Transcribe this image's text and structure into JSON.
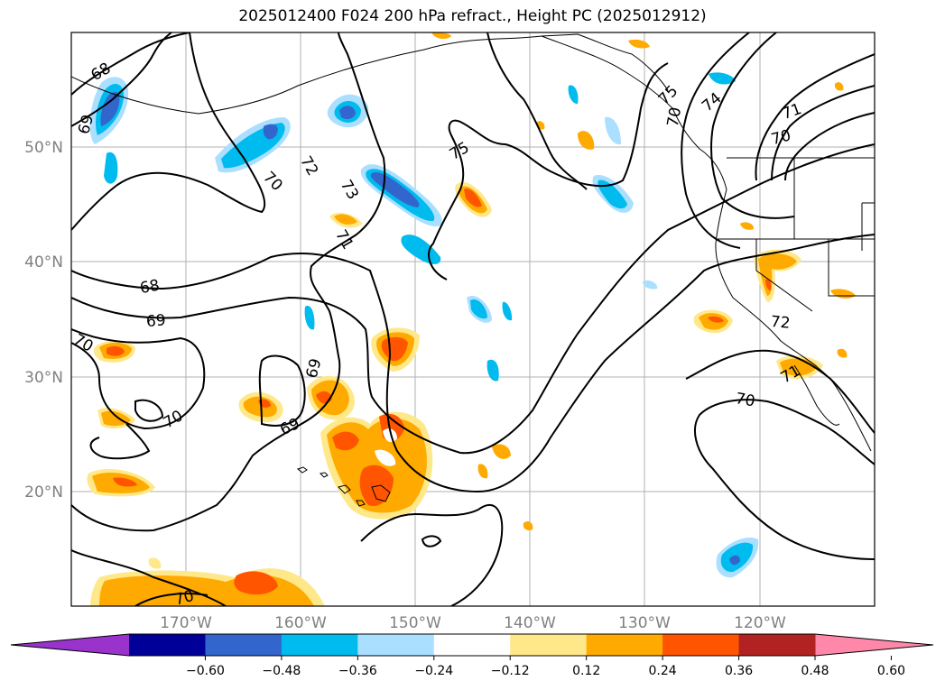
{
  "title": "2025012400 F024 200 hPa refract., Height PC (2025012912)",
  "lon_labels": [
    "170°W",
    "160°W",
    "150°W",
    "140°W",
    "130°W",
    "120°W"
  ],
  "lat_labels": [
    "50°N",
    "40°N",
    "30°N",
    "20°N"
  ],
  "colorbar": {
    "colors": [
      "#9933cc",
      "#000099",
      "#3366cc",
      "#00bbee",
      "#aadfff",
      "#ffffff",
      "#ffe88a",
      "#ffaa00",
      "#ff5500",
      "#b22222",
      "#ff88aa"
    ],
    "ticks": [
      "−0.60",
      "−0.48",
      "−0.36",
      "−0.24",
      "−0.12",
      "0.12",
      "0.24",
      "0.36",
      "0.48",
      "0.60"
    ]
  },
  "contour_labels": [
    "68",
    "69",
    "68",
    "69",
    "70",
    "70",
    "70",
    "69",
    "69",
    "70",
    "71",
    "72",
    "73",
    "75",
    "75",
    "74",
    "71",
    "70",
    "72",
    "71",
    "70",
    "70"
  ]
}
